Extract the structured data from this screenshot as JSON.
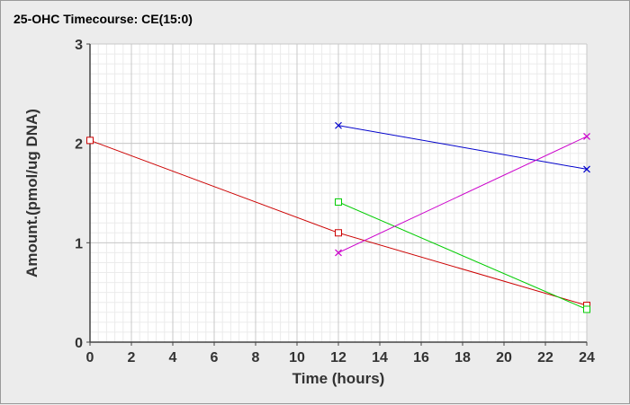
{
  "chart_data": {
    "type": "line",
    "title": "25-OHC Timecourse: CE(15:0)",
    "xlabel": "Time (hours)",
    "ylabel": "Amount.(pmol/ug DNA)",
    "xlim": [
      0,
      24
    ],
    "ylim": [
      0,
      3
    ],
    "x_ticks": [
      0,
      2,
      4,
      6,
      8,
      10,
      12,
      14,
      16,
      18,
      20,
      22,
      24
    ],
    "y_ticks": [
      0,
      1,
      2,
      3
    ],
    "grid": true,
    "legend": "none",
    "series": [
      {
        "color": "#cc0000",
        "marker": "square",
        "x": [
          0,
          12,
          24
        ],
        "y": [
          2.03,
          1.1,
          0.37
        ]
      },
      {
        "color": "#00cc00",
        "marker": "square",
        "x": [
          12,
          24
        ],
        "y": [
          1.41,
          0.33
        ]
      },
      {
        "color": "#0000cc",
        "marker": "x",
        "x": [
          12,
          24
        ],
        "y": [
          2.18,
          1.74
        ]
      },
      {
        "color": "#cc00cc",
        "marker": "x",
        "x": [
          12,
          24
        ],
        "y": [
          0.9,
          2.07
        ]
      }
    ]
  }
}
